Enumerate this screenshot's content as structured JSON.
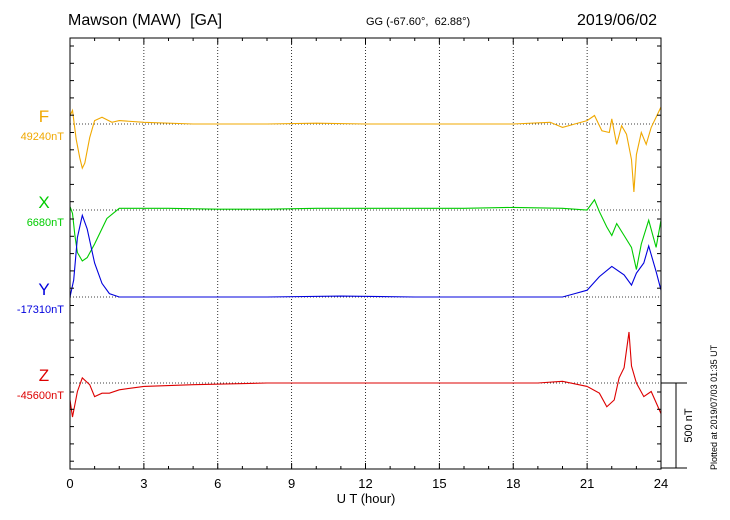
{
  "header": {
    "station": "Mawson (MAW)  [GA]",
    "coords": "GG (-67.60°,  62.88°)",
    "date": "2019/06/02"
  },
  "footnote": "Plotted at 2019/07/03 01:35 UT",
  "chart_data": {
    "type": "line",
    "xlabel": "U T (hour)",
    "xlim": [
      0,
      24
    ],
    "xticks": [
      "0",
      "3",
      "6",
      "9",
      "12",
      "15",
      "18",
      "21",
      "24"
    ],
    "grid": "vertical dotted every 3 h; dotted baseline per series",
    "scale_bar": {
      "value": 500,
      "label": "500 nT"
    },
    "series": [
      {
        "name": "F",
        "baseline_label": "49240nT",
        "color": "#f0a800",
        "x": [
          0,
          0.1,
          0.25,
          0.4,
          0.5,
          0.6,
          0.8,
          1.0,
          1.3,
          1.7,
          2.0,
          3,
          5,
          8,
          10,
          12,
          14,
          16,
          18,
          19.5,
          20,
          20.5,
          21,
          21.3,
          21.6,
          21.9,
          22.0,
          22.2,
          22.4,
          22.6,
          22.8,
          22.9,
          23.0,
          23.2,
          23.4,
          23.6,
          23.8,
          24.0
        ],
        "y": [
          50,
          80,
          -90,
          -200,
          -260,
          -230,
          -80,
          20,
          40,
          10,
          20,
          10,
          0,
          0,
          5,
          0,
          0,
          0,
          0,
          10,
          -20,
          0,
          20,
          50,
          -40,
          -50,
          30,
          -120,
          -10,
          -60,
          -210,
          -400,
          -180,
          -50,
          -120,
          -20,
          40,
          100
        ]
      },
      {
        "name": "X",
        "baseline_label": "6680nT",
        "color": "#00cc00",
        "x": [
          0,
          0.1,
          0.2,
          0.3,
          0.5,
          0.7,
          1.0,
          1.5,
          2.0,
          4,
          6,
          8,
          10,
          12,
          14,
          16,
          18,
          20,
          21,
          21.3,
          21.5,
          21.8,
          22.0,
          22.2,
          22.5,
          22.8,
          23.0,
          23.2,
          23.5,
          23.8,
          24.0
        ],
        "y": [
          20,
          -20,
          -150,
          -250,
          -300,
          -280,
          -200,
          -50,
          10,
          10,
          5,
          5,
          10,
          10,
          10,
          10,
          15,
          10,
          0,
          60,
          -10,
          -100,
          -150,
          -80,
          -150,
          -220,
          -350,
          -200,
          -60,
          -220,
          -60
        ]
      },
      {
        "name": "Y",
        "baseline_label": "-17310nT",
        "color": "#0000dd",
        "x": [
          0,
          0.15,
          0.3,
          0.5,
          0.7,
          1.0,
          1.3,
          1.6,
          2.0,
          3,
          5,
          8,
          11,
          14,
          17,
          19,
          20,
          20.5,
          21,
          21.5,
          22.0,
          22.5,
          22.8,
          23.0,
          23.3,
          23.5,
          23.8,
          24.0
        ],
        "y": [
          0,
          100,
          350,
          480,
          400,
          200,
          80,
          20,
          0,
          0,
          0,
          0,
          5,
          0,
          0,
          0,
          0,
          20,
          40,
          120,
          180,
          130,
          70,
          140,
          200,
          300,
          150,
          40
        ]
      },
      {
        "name": "Z",
        "baseline_label": "-45600nT",
        "color": "#dd0000",
        "x": [
          0,
          0.1,
          0.3,
          0.5,
          0.8,
          1.0,
          1.3,
          1.6,
          2.0,
          3,
          5,
          8,
          11,
          14,
          17,
          19,
          20,
          21,
          21.5,
          21.8,
          22.1,
          22.3,
          22.5,
          22.7,
          22.8,
          23.0,
          23.3,
          23.6,
          24.0
        ],
        "y": [
          -100,
          -200,
          -50,
          30,
          -10,
          -80,
          -60,
          -60,
          -40,
          -20,
          -10,
          0,
          0,
          0,
          0,
          0,
          10,
          -20,
          -60,
          -140,
          -100,
          30,
          90,
          300,
          100,
          0,
          -80,
          -50,
          -180
        ]
      }
    ]
  }
}
